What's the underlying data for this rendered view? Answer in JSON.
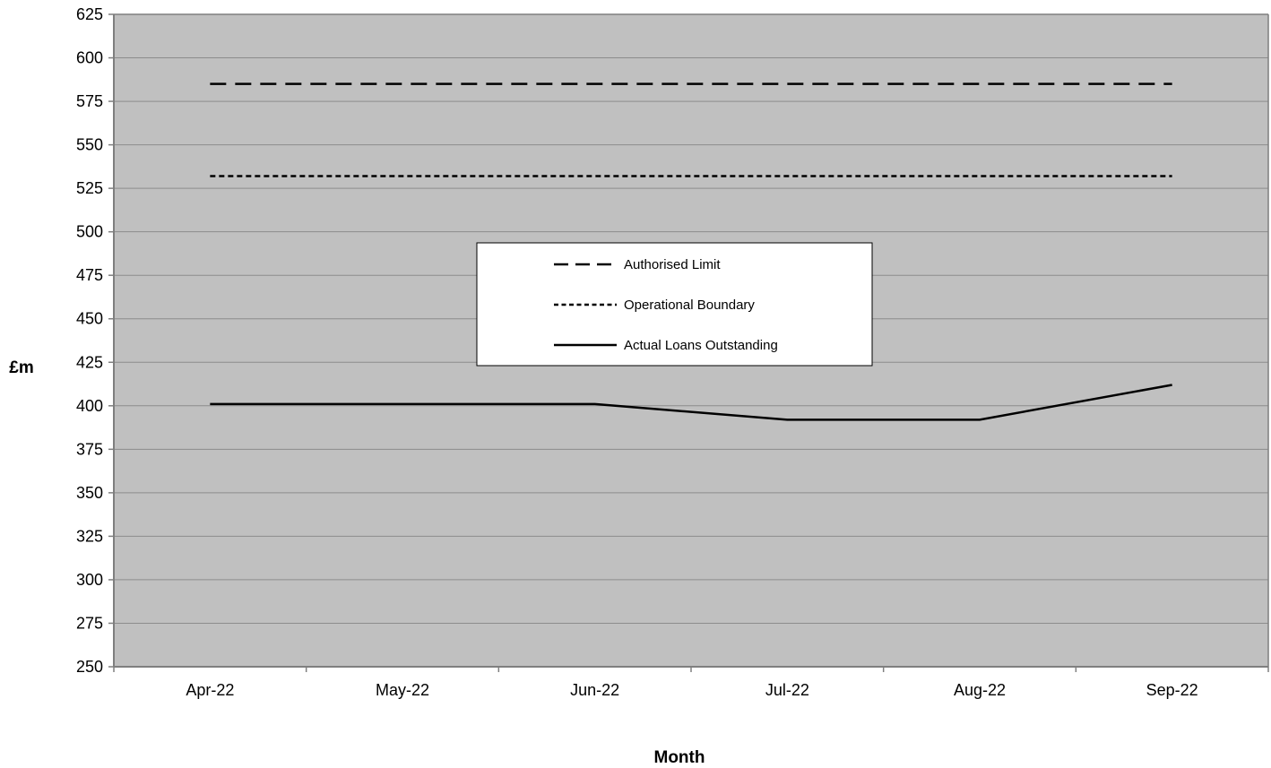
{
  "chart_data": {
    "type": "line",
    "title": "",
    "xlabel": "Month",
    "ylabel": "£m",
    "categories": [
      "Apr-22",
      "May-22",
      "Jun-22",
      "Jul-22",
      "Aug-22",
      "Sep-22"
    ],
    "ylim": [
      250,
      625
    ],
    "yticks": [
      250,
      275,
      300,
      325,
      350,
      375,
      400,
      425,
      450,
      475,
      500,
      525,
      550,
      575,
      600,
      625
    ],
    "grid": true,
    "legend_position": "center",
    "series": [
      {
        "name": "Authorised Limit",
        "style": "long-dash",
        "values": [
          585,
          585,
          585,
          585,
          585,
          585
        ]
      },
      {
        "name": "Operational Boundary",
        "style": "short-dash",
        "values": [
          532,
          532,
          532,
          532,
          532,
          532
        ]
      },
      {
        "name": "Actual Loans Outstanding",
        "style": "solid",
        "values": [
          401,
          401,
          401,
          392,
          392,
          412
        ]
      }
    ],
    "colors": {
      "plot_background": "#c0c0c0",
      "gridline": "#8c8c8c",
      "axis": "#7f7f7f",
      "series_line": "#000000"
    }
  }
}
